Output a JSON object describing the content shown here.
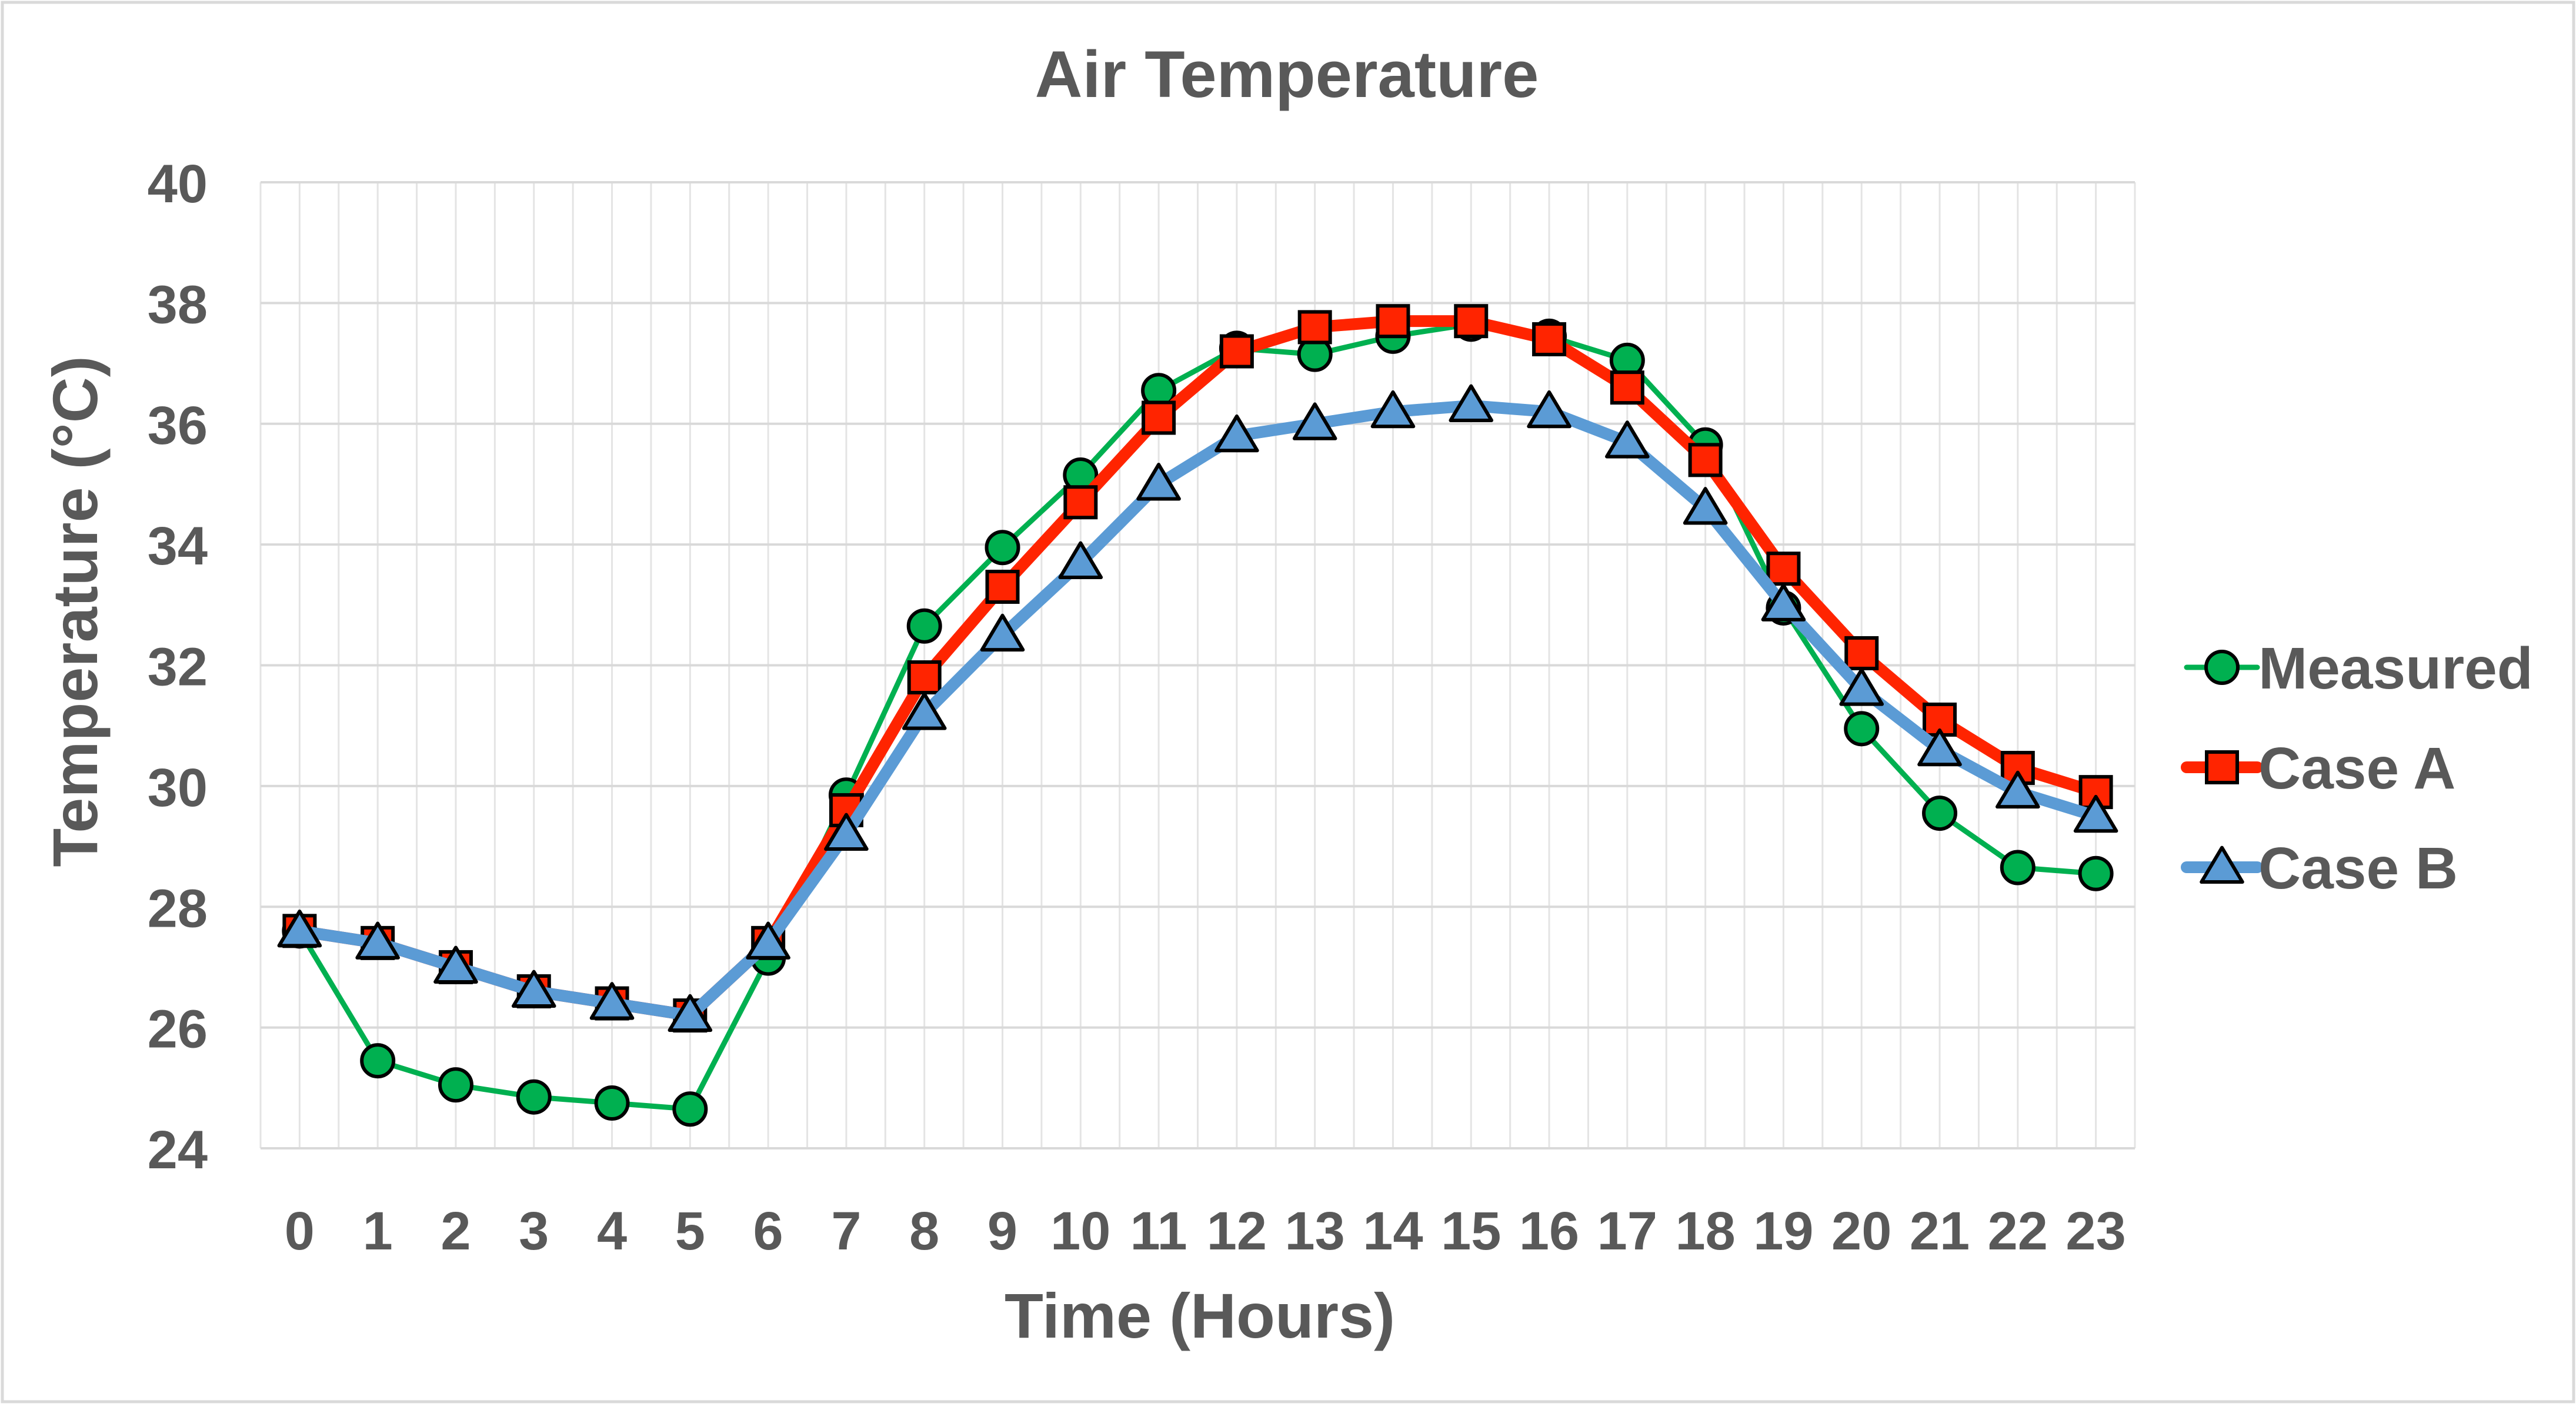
{
  "chart_data": {
    "type": "line",
    "title": "Air Temperature",
    "xlabel": "Time (Hours)",
    "ylabel": "Temperature (°C)",
    "x": [
      0,
      1,
      2,
      3,
      4,
      5,
      6,
      7,
      8,
      9,
      10,
      11,
      12,
      13,
      14,
      15,
      16,
      17,
      18,
      19,
      20,
      21,
      22,
      23
    ],
    "xlim": [
      -0.5,
      23.5
    ],
    "ylim": [
      24,
      40
    ],
    "yticks": [
      24,
      26,
      28,
      30,
      32,
      34,
      36,
      38,
      40
    ],
    "grid": true,
    "legend_position": "right",
    "series": [
      {
        "name": "Measured",
        "marker": "circle",
        "color": "#00B050",
        "values": [
          27.6,
          25.45,
          25.05,
          24.85,
          24.75,
          24.65,
          27.15,
          29.85,
          32.65,
          33.95,
          35.15,
          36.55,
          37.25,
          37.15,
          37.45,
          37.65,
          37.45,
          37.05,
          35.65,
          32.95,
          30.95,
          29.55,
          28.65,
          28.55
        ]
      },
      {
        "name": "Case A",
        "marker": "square",
        "color": "#FF2400",
        "values": [
          27.6,
          27.4,
          27.0,
          26.6,
          26.4,
          26.2,
          27.4,
          29.6,
          31.8,
          33.3,
          34.7,
          36.1,
          37.2,
          37.6,
          37.7,
          37.7,
          37.4,
          36.6,
          35.4,
          33.6,
          32.2,
          31.1,
          30.3,
          29.9
        ]
      },
      {
        "name": "Case B",
        "marker": "triangle",
        "color": "#5B9BD5",
        "values": [
          27.6,
          27.4,
          27.0,
          26.6,
          26.4,
          26.2,
          27.4,
          29.2,
          31.2,
          32.5,
          33.7,
          35.0,
          35.8,
          36.0,
          36.2,
          36.3,
          36.2,
          35.7,
          34.6,
          33.0,
          31.6,
          30.6,
          29.9,
          29.5
        ]
      }
    ]
  }
}
